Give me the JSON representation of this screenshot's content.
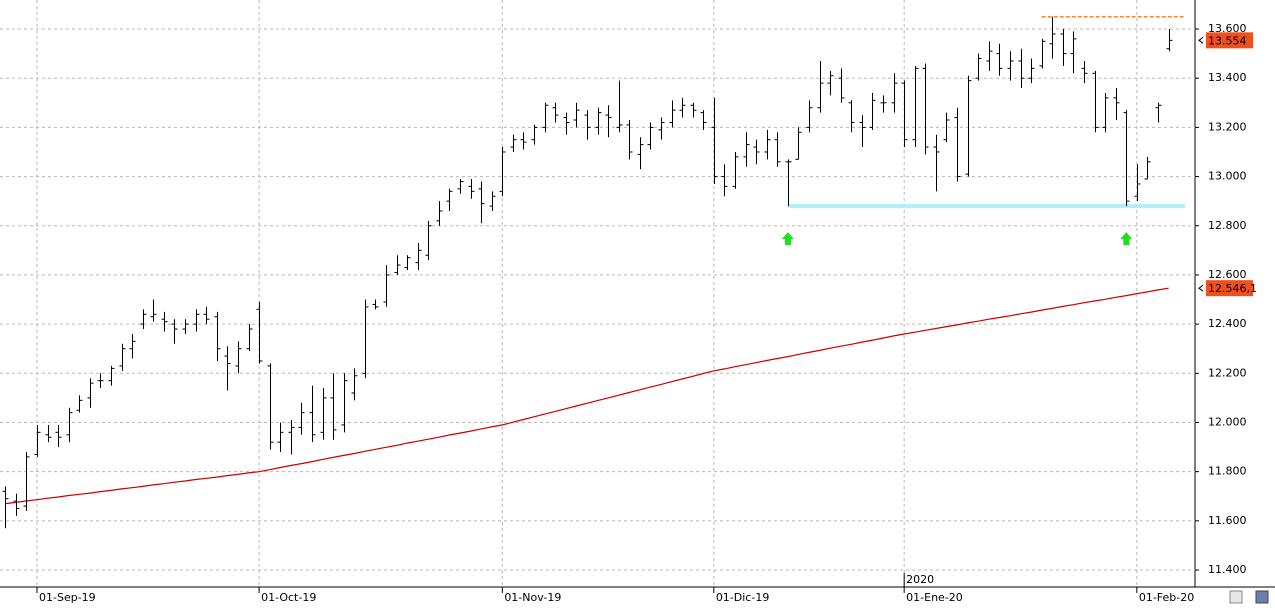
{
  "chart_data": {
    "type": "ohlc",
    "categories": [
      null,
      null,
      null,
      "01-Sep-19",
      null,
      null,
      null,
      null,
      null,
      null,
      null,
      null,
      null,
      null,
      null,
      null,
      null,
      null,
      null,
      null,
      null,
      null,
      null,
      null,
      "01-Oct-19",
      null,
      null,
      null,
      null,
      null,
      null,
      null,
      null,
      null,
      null,
      null,
      null,
      null,
      null,
      null,
      null,
      null,
      null,
      null,
      null,
      null,
      null,
      "01-Nov-19",
      null,
      null,
      null,
      null,
      null,
      null,
      null,
      null,
      null,
      null,
      null,
      null,
      null,
      null,
      null,
      null,
      null,
      null,
      null,
      "01-Dic-19",
      null,
      null,
      null,
      null,
      null,
      null,
      null,
      null,
      null,
      null,
      null,
      null,
      null,
      null,
      null,
      null,
      null,
      "01-Ene-20",
      null,
      null,
      null,
      null,
      null,
      null,
      null,
      null,
      null,
      null,
      null,
      null,
      null,
      null,
      null,
      null,
      null,
      null,
      null,
      null,
      null,
      "01-Feb-20",
      null,
      null,
      null
    ],
    "year_marker": {
      "index": 85,
      "label": "2020"
    },
    "open": [
      11720,
      11680,
      11660,
      11870,
      11950,
      11960,
      11950,
      12050,
      12100,
      12170,
      12170,
      12230,
      12300,
      12400,
      12430,
      12420,
      12400,
      12380,
      12400,
      12440,
      12430,
      12270,
      12230,
      12300,
      12460,
      12230,
      11920,
      11960,
      11980,
      12040,
      11960,
      12100,
      11990,
      12120,
      12200,
      12480,
      12490,
      12610,
      12630,
      12650,
      12680,
      12820,
      12900,
      12950,
      12960,
      12950,
      12880,
      12940,
      13120,
      13150,
      13150,
      13200,
      13280,
      13240,
      13230,
      13250,
      13200,
      13250,
      13200,
      13210,
      13090,
      13130,
      13190,
      13220,
      13270,
      13290,
      13260,
      13200,
      13000,
      12960,
      13080,
      13120,
      13100,
      13150,
      13060,
      13070,
      13200,
      13280,
      13380,
      13400,
      13300,
      13220,
      13200,
      13300,
      13300,
      13380,
      13150,
      13440,
      13120,
      13150,
      13240,
      13010,
      13400,
      13470,
      13500,
      13440,
      13470,
      13400,
      13450,
      13540,
      13580,
      13500,
      13440,
      13420,
      13200,
      13320,
      13260,
      12920,
      12990,
      13280,
      13520
    ],
    "high": [
      11740,
      11710,
      11880,
      11990,
      11990,
      11990,
      12060,
      12110,
      12180,
      12200,
      12230,
      12320,
      12360,
      12460,
      12500,
      12450,
      12420,
      12420,
      12460,
      12470,
      12450,
      12310,
      12330,
      12400,
      12490,
      12240,
      12000,
      12010,
      12080,
      12150,
      12140,
      12200,
      12200,
      12220,
      12500,
      12500,
      12640,
      12680,
      12680,
      12730,
      12820,
      12900,
      12950,
      12990,
      12990,
      12980,
      12940,
      13120,
      13170,
      13180,
      13210,
      13300,
      13300,
      13260,
      13300,
      13270,
      13280,
      13290,
      13390,
      13230,
      13160,
      13220,
      13240,
      13310,
      13320,
      13300,
      13270,
      13320,
      13050,
      13100,
      13180,
      13150,
      13190,
      13180,
      13070,
      13200,
      13310,
      13470,
      13430,
      13440,
      13310,
      13250,
      13340,
      13330,
      13420,
      13390,
      13450,
      13460,
      13170,
      13260,
      13280,
      13410,
      13500,
      13550,
      13540,
      13510,
      13520,
      13480,
      13560,
      13650,
      13600,
      13590,
      13470,
      13430,
      13340,
      13360,
      13270,
      13050,
      13080,
      13300,
      13600
    ],
    "low": [
      11570,
      11620,
      11640,
      11860,
      11920,
      11900,
      11920,
      12040,
      12060,
      12140,
      12150,
      12210,
      12260,
      12380,
      12410,
      12370,
      12320,
      12360,
      12370,
      12400,
      12250,
      12130,
      12200,
      12290,
      12240,
      11890,
      11880,
      11870,
      11950,
      11920,
      11930,
      11930,
      11960,
      12090,
      12180,
      12460,
      12470,
      12600,
      12620,
      12620,
      12660,
      12800,
      12860,
      12930,
      12910,
      12810,
      12860,
      12920,
      13100,
      13110,
      13130,
      13180,
      13220,
      13170,
      13200,
      13150,
      13170,
      13160,
      13180,
      13070,
      13030,
      13110,
      13150,
      13200,
      13240,
      13240,
      13190,
      12970,
      12920,
      12950,
      13040,
      13050,
      13070,
      13040,
      12880,
      13070,
      13180,
      13260,
      13330,
      13300,
      13180,
      13120,
      13190,
      13260,
      13260,
      13120,
      13120,
      13090,
      12940,
      13140,
      12980,
      13000,
      13390,
      13430,
      13410,
      13390,
      13360,
      13380,
      13440,
      13480,
      13450,
      13420,
      13380,
      13180,
      13180,
      13230,
      12880,
      12900,
      12990,
      13220,
      13510
    ],
    "close": [
      11690,
      11650,
      11860,
      11960,
      11940,
      11940,
      12040,
      12090,
      12160,
      12170,
      12220,
      12300,
      12330,
      12440,
      12440,
      12410,
      12380,
      12400,
      12440,
      12420,
      12300,
      12240,
      12300,
      12380,
      12250,
      11920,
      11960,
      11980,
      12040,
      11950,
      12100,
      11970,
      12170,
      12190,
      12470,
      12470,
      12600,
      12640,
      12670,
      12700,
      12800,
      12860,
      12940,
      12980,
      12940,
      12890,
      12920,
      13100,
      13150,
      13140,
      13200,
      13290,
      13250,
      13220,
      13270,
      13200,
      13260,
      13240,
      13210,
      13100,
      13130,
      13200,
      13220,
      13270,
      13290,
      13270,
      13220,
      13000,
      12960,
      13080,
      13130,
      13100,
      13150,
      13060,
      13060,
      13180,
      13280,
      13380,
      13410,
      13320,
      13220,
      13200,
      13310,
      13300,
      13380,
      13150,
      13440,
      13120,
      13100,
      13230,
      13000,
      13390,
      13480,
      13510,
      13440,
      13470,
      13400,
      13440,
      13550,
      13580,
      13500,
      13560,
      13420,
      13200,
      13320,
      13300,
      12900,
      12970,
      13060,
      13290,
      13554
    ],
    "bar_color": "#000000",
    "last_close_label": "13.554",
    "label_color": "#f0501e",
    "moving_average": {
      "color": "#cc0000",
      "label": "12.546,1",
      "values": [
        11670,
        11675,
        11681,
        11686,
        11692,
        11697,
        11703,
        11708,
        11713,
        11719,
        11724,
        11730,
        11735,
        11740,
        11746,
        11751,
        11757,
        11762,
        11768,
        11773,
        11778,
        11784,
        11789,
        11795,
        11800,
        11808,
        11817,
        11825,
        11833,
        11841,
        11850,
        11858,
        11866,
        11874,
        11883,
        11891,
        11899,
        11907,
        11916,
        11924,
        11932,
        11940,
        11949,
        11957,
        11965,
        11974,
        11982,
        11990,
        12001,
        12012,
        12023,
        12034,
        12045,
        12056,
        12067,
        12078,
        12089,
        12100,
        12111,
        12122,
        12133,
        12144,
        12155,
        12166,
        12177,
        12188,
        12199,
        12210,
        12218,
        12227,
        12235,
        12243,
        12252,
        12260,
        12268,
        12277,
        12285,
        12293,
        12302,
        12310,
        12318,
        12327,
        12335,
        12343,
        12352,
        12360,
        12367,
        12375,
        12382,
        12390,
        12397,
        12405,
        12412,
        12420,
        12427,
        12434,
        12442,
        12449,
        12457,
        12464,
        12472,
        12479,
        12487,
        12494,
        12501,
        12509,
        12516,
        12524,
        12531,
        12539,
        12546.1
      ]
    },
    "support": {
      "value": 12880,
      "start": 74,
      "color": "#b0f0f8"
    },
    "resistance": {
      "value": 13650,
      "start": 98,
      "color": "#ff8c1a"
    },
    "signals": [
      74,
      106
    ],
    "signal_color": "#22dd22",
    "ylim": [
      11331,
      13718
    ],
    "yticks": [
      {
        "value": 11400,
        "label": "11.400"
      },
      {
        "value": 11600,
        "label": "11.600"
      },
      {
        "value": 11800,
        "label": "11.800"
      },
      {
        "value": 12000,
        "label": "12.000"
      },
      {
        "value": 12200,
        "label": "12.200"
      },
      {
        "value": 12400,
        "label": "12.400"
      },
      {
        "value": 12600,
        "label": "12.600"
      },
      {
        "value": 12800,
        "label": "12.800"
      },
      {
        "value": 13000,
        "label": "13.000"
      },
      {
        "value": 13200,
        "label": "13.200"
      },
      {
        "value": 13400,
        "label": "13.400"
      },
      {
        "value": 13600,
        "label": "13.600"
      }
    ],
    "grid": true
  }
}
